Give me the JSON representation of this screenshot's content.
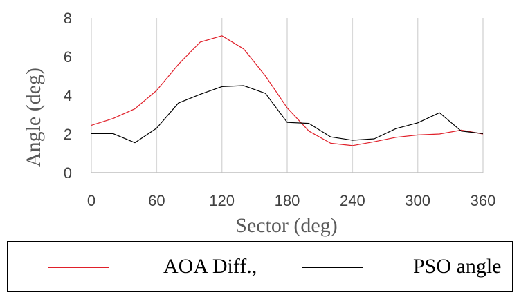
{
  "chart_data": {
    "type": "line",
    "xlabel": "Sector (deg)",
    "ylabel": "Angle (deg)",
    "xlim": [
      0,
      360
    ],
    "ylim": [
      0,
      8
    ],
    "xticks": [
      0,
      60,
      120,
      180,
      240,
      300,
      360
    ],
    "xtick_labels": [
      "0",
      "60",
      "120",
      "180",
      "240",
      "300",
      "360"
    ],
    "yticks": [
      0,
      2,
      4,
      6,
      8
    ],
    "ytick_labels": [
      "0",
      "2",
      "4",
      "6",
      "8"
    ],
    "grid": "vertical",
    "legend_position": "bottom",
    "series": [
      {
        "name": "AOA Diff.,",
        "color": "#e0202a",
        "x": [
          0,
          20,
          40,
          60,
          80,
          100,
          120,
          140,
          160,
          180,
          200,
          220,
          240,
          260,
          280,
          300,
          320,
          340,
          360
        ],
        "y": [
          2.45,
          2.8,
          3.3,
          4.25,
          5.6,
          6.75,
          7.08,
          6.4,
          5.0,
          3.35,
          2.15,
          1.52,
          1.4,
          1.6,
          1.83,
          1.95,
          2.0,
          2.2,
          2.0
        ]
      },
      {
        "name": "PSO angle",
        "color": "#000000",
        "x": [
          0,
          20,
          40,
          60,
          80,
          100,
          120,
          140,
          160,
          180,
          200,
          220,
          240,
          260,
          280,
          300,
          320,
          340,
          360
        ],
        "y": [
          2.02,
          2.02,
          1.55,
          2.3,
          3.6,
          4.05,
          4.45,
          4.5,
          4.1,
          2.6,
          2.55,
          1.85,
          1.68,
          1.75,
          2.28,
          2.58,
          3.1,
          2.15,
          2.02
        ]
      }
    ]
  }
}
